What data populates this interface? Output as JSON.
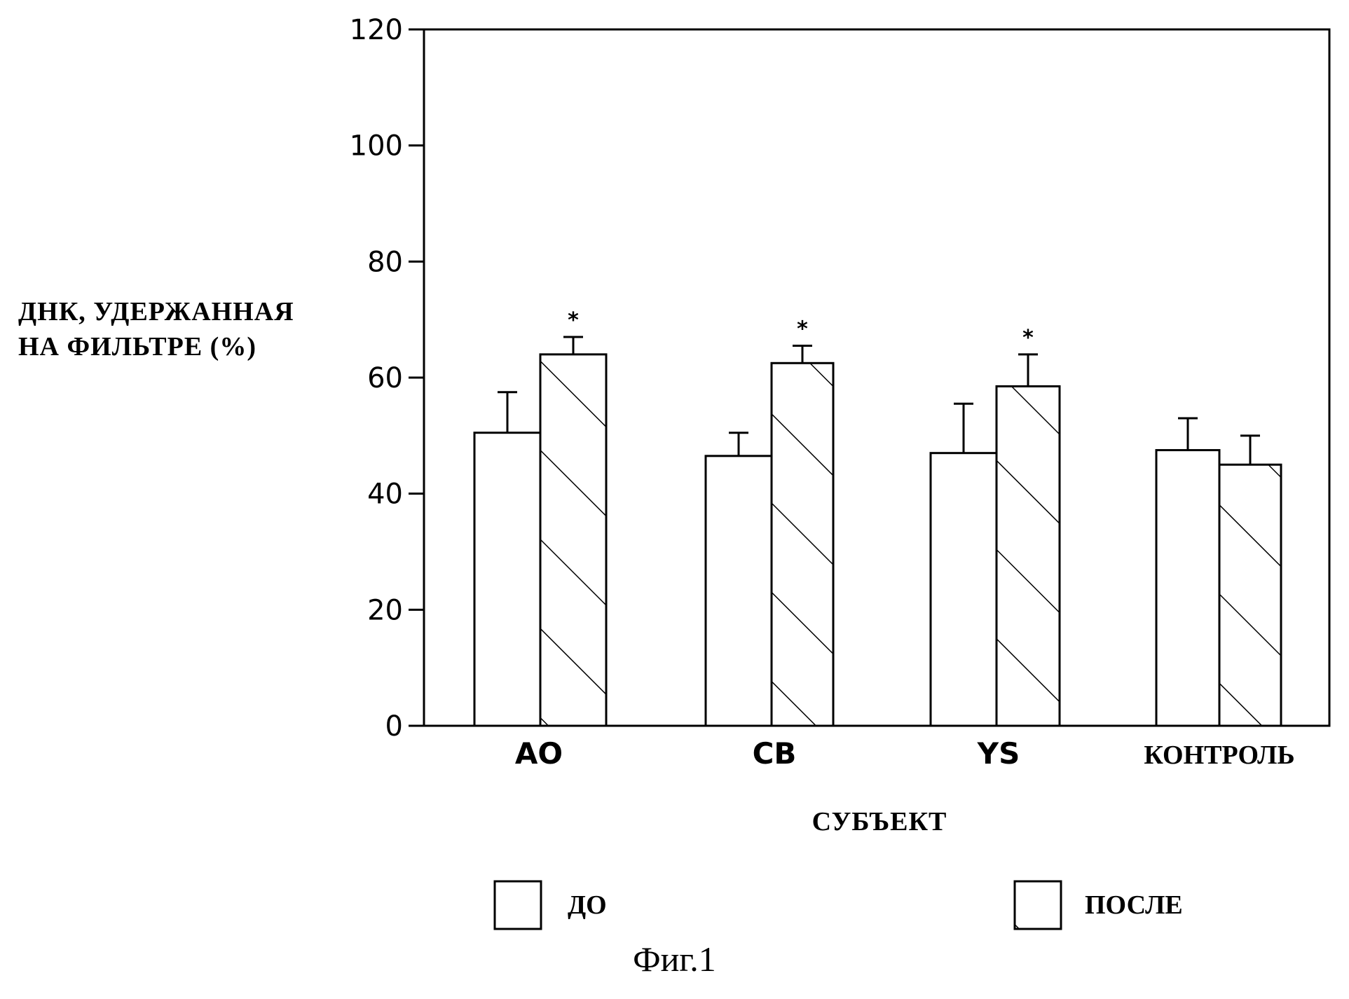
{
  "figure_caption": "Фиг.1",
  "chart_data": {
    "type": "bar",
    "title": "",
    "ylabel_lines": [
      "ДНК, УДЕРЖАННАЯ",
      "НА ФИЛЬТРЕ (%)"
    ],
    "xlabel": "СУБЪЕКТ",
    "categories": [
      "AO",
      "CB",
      "YS",
      "КОНТРОЛЬ"
    ],
    "ylim": [
      0,
      120
    ],
    "yticks": [
      0,
      20,
      40,
      60,
      80,
      100,
      120
    ],
    "grid": false,
    "legend_position": "bottom",
    "series": [
      {
        "name": "ДО",
        "pattern": "none",
        "values": [
          50.5,
          46.5,
          47,
          47.5
        ],
        "errors": [
          7,
          4,
          8.5,
          5.5
        ],
        "significance": [
          "",
          "",
          "",
          ""
        ]
      },
      {
        "name": "ПОСЛЕ",
        "pattern": "diagonal-hatch",
        "values": [
          64,
          62.5,
          58.5,
          45
        ],
        "errors": [
          3,
          3,
          5.5,
          5
        ],
        "significance": [
          "*",
          "*",
          "*",
          ""
        ]
      }
    ],
    "colors": {
      "stroke": "#000000",
      "fill": "#ffffff"
    }
  }
}
